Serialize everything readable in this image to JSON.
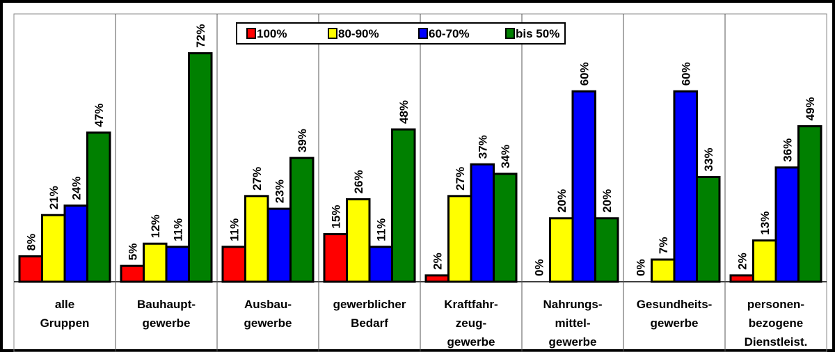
{
  "chart_data": {
    "type": "bar",
    "categories": [
      [
        "alle",
        "Gruppen"
      ],
      [
        "Bauhaupt-",
        "gewerbe"
      ],
      [
        "Ausbau-",
        "gewerbe"
      ],
      [
        "gewerblicher",
        "Bedarf"
      ],
      [
        "Kraftfahr-",
        "zeug-",
        "gewerbe"
      ],
      [
        "Nahrungs-",
        "mittel-",
        "gewerbe"
      ],
      [
        "Gesundheits-",
        "gewerbe"
      ],
      [
        "personen-",
        "bezogene",
        "Dienstleist."
      ]
    ],
    "series": [
      {
        "name": "100%",
        "color": "#ff0000",
        "values": [
          8,
          5,
          11,
          15,
          2,
          0,
          0,
          2
        ],
        "value_labels": [
          "8%",
          "5%",
          "11%",
          "15%",
          "2%",
          "0%",
          "0%",
          "2%"
        ]
      },
      {
        "name": "80-90%",
        "color": "#ffff00",
        "values": [
          21,
          12,
          27,
          26,
          27,
          20,
          7,
          13
        ],
        "value_labels": [
          "21%",
          "12%",
          "27%",
          "26%",
          "27%",
          "20%",
          "7%",
          "13%"
        ]
      },
      {
        "name": "60-70%",
        "color": "#0000ff",
        "values": [
          24,
          11,
          23,
          11,
          37,
          60,
          60,
          36
        ],
        "value_labels": [
          "24%",
          "11%",
          "23%",
          "11%",
          "37%",
          "60%",
          "60%",
          "36%"
        ]
      },
      {
        "name": "bis 50%",
        "color": "#008000",
        "values": [
          47,
          72,
          39,
          48,
          34,
          20,
          33,
          49
        ],
        "value_labels": [
          "47%",
          "72%",
          "39%",
          "48%",
          "34%",
          "20%",
          "33%",
          "49%"
        ]
      }
    ],
    "ylim": [
      0,
      84.4
    ],
    "legend": "top"
  }
}
